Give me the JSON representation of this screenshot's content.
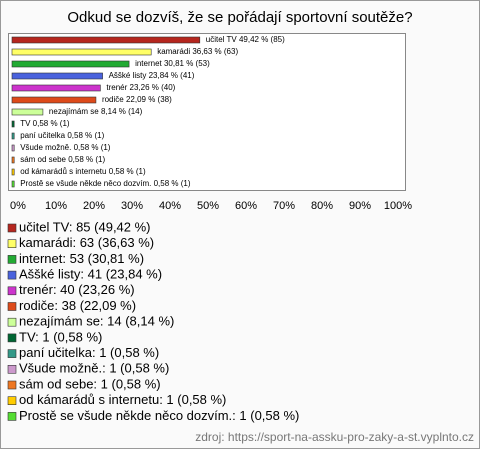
{
  "chart_data": {
    "type": "bar",
    "orientation": "horizontal",
    "title": "Odkud se dozvíš, že se pořádají sportovní soutěže?",
    "values": [
      49.42,
      36.63,
      30.81,
      23.84,
      23.26,
      22.09,
      8.14,
      0.58,
      0.58,
      0.58,
      0.58,
      0.58,
      0.58
    ],
    "value_labels": [
      "učitel TV 49,42 % (85)",
      "kamarádi 36,63 % (63)",
      "internet 30,81 % (53)",
      "Aššké listy 23,84 % (41)",
      "trenér 23,26 % (40)",
      "rodiče 22,09 % (38)",
      "nezajímám se 8,14 % (14)",
      "TV 0,58 % (1)",
      "paní učitelka 0,58 % (1)",
      "Všude možně. 0,58 % (1)",
      "sám od sebe 0,58 % (1)",
      "od kámarádů s internetu 0,58 % (1)",
      "Prostě se všude někde něco dozvím. 0,58 % (1)"
    ],
    "colors": [
      "#b5261e",
      "#ffff66",
      "#22aa33",
      "#4a62dd",
      "#cc33cc",
      "#dd4a1a",
      "#ccff99",
      "#006633",
      "#339988",
      "#cc99cc",
      "#ee7722",
      "#ffcc00",
      "#55dd33"
    ],
    "legend": [
      "učitel TV: 85 (49,42 %)",
      "kamarádi: 63 (36,63 %)",
      "internet: 53 (30,81 %)",
      "Aššké listy: 41 (23,84 %)",
      "trenér: 40 (23,26 %)",
      "rodiče: 38 (22,09 %)",
      "nezajímám se: 14 (8,14 %)",
      "TV: 1 (0,58 %)",
      "paní učitelka: 1 (0,58 %)",
      "Všude možně.: 1 (0,58 %)",
      "sám od sebe: 1 (0,58 %)",
      "od kámarádů s internetu: 1 (0,58 %)",
      "Prostě se všude někde něco dozvím.: 1 (0,58 %)"
    ],
    "xlim": [
      0,
      100
    ],
    "xticks": [
      {
        "value": 0,
        "label": "0%"
      },
      {
        "value": 10,
        "label": "10%"
      },
      {
        "value": 20,
        "label": "20%"
      },
      {
        "value": 30,
        "label": "30%"
      },
      {
        "value": 40,
        "label": "40%"
      },
      {
        "value": 50,
        "label": "50%"
      },
      {
        "value": 60,
        "label": "60%"
      },
      {
        "value": 70,
        "label": "70%"
      },
      {
        "value": 80,
        "label": "80%"
      },
      {
        "value": 90,
        "label": "90%"
      },
      {
        "value": 100,
        "label": "100%"
      }
    ],
    "source": "zdroj: https://sport-na-assku-pro-zaky-a-st.vyplnto.cz"
  }
}
